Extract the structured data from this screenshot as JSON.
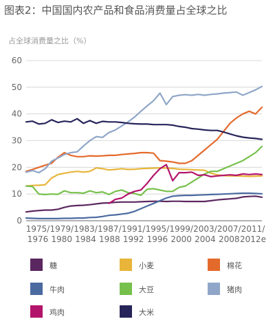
{
  "chart_data": {
    "type": "line",
    "title": "图表2：中国国内农产品和食品消费量占全球之比",
    "ylabel": "占全球消费量之比（%）",
    "xlabel": "",
    "ylim": [
      0,
      60
    ],
    "y_ticks": [
      "0",
      "10",
      "20",
      "30",
      "40",
      "50",
      "60"
    ],
    "x_tick_labels": [
      [
        "1975/",
        "1976"
      ],
      [
        "1979/",
        "1980"
      ],
      [
        "1983/",
        "1984"
      ],
      [
        "1987/",
        "1988"
      ],
      [
        "1991/",
        "1992"
      ],
      [
        "1995/",
        "1996"
      ],
      [
        "1999/",
        "2000"
      ],
      [
        "2003/",
        "2004"
      ],
      [
        "2007/",
        "2008"
      ],
      [
        "2011/",
        "2012e"
      ]
    ],
    "x": [
      1975,
      1976,
      1977,
      1978,
      1979,
      1980,
      1981,
      1982,
      1983,
      1984,
      1985,
      1986,
      1987,
      1988,
      1989,
      1990,
      1991,
      1992,
      1993,
      1994,
      1995,
      1996,
      1997,
      1998,
      1999,
      2000,
      2001,
      2002,
      2003,
      2004,
      2005,
      2006,
      2007,
      2008,
      2009,
      2010,
      2011,
      2012
    ],
    "grid": "horizontal",
    "legend_position": "bottom",
    "series": [
      {
        "name": "糖",
        "color": "#5b2760",
        "values": [
          3.3,
          3.6,
          3.8,
          4,
          4,
          4.3,
          5,
          5.5,
          5.7,
          5.8,
          6,
          6.3,
          6.6,
          6.7,
          6.9,
          7,
          7,
          7,
          7.1,
          7.2,
          7.3,
          7.3,
          7.2,
          7.3,
          7.3,
          7.2,
          7.2,
          7.2,
          7.2,
          7.5,
          7.8,
          8,
          8.2,
          8.4,
          8.9,
          9.1,
          9.2,
          8.8
        ]
      },
      {
        "name": "小麦",
        "color": "#e8b53a",
        "values": [
          13,
          13.2,
          13.3,
          13.5,
          16,
          17.3,
          17.8,
          18.2,
          18.5,
          18.2,
          18.5,
          19.8,
          19.5,
          19,
          19.2,
          19.5,
          19.2,
          19.3,
          19.5,
          19.6,
          19.7,
          19.8,
          19.7,
          19.6,
          19.3,
          19.2,
          19.1,
          19,
          18.9,
          17.8,
          17.2,
          16.9,
          16.8,
          16.8,
          16.7,
          16.6,
          16.7,
          16.8
        ]
      },
      {
        "name": "棉花",
        "color": "#e46a2c",
        "values": [
          18.5,
          19.2,
          20,
          20.8,
          21.5,
          23.8,
          25.5,
          24.5,
          24,
          24,
          24.3,
          24.2,
          24.3,
          24.5,
          24.5,
          24.8,
          25,
          25.2,
          25.5,
          25.5,
          25.3,
          22.5,
          22.3,
          22,
          21.5,
          21.5,
          22.5,
          24.5,
          26.5,
          28.5,
          30.5,
          33.5,
          36.5,
          38.5,
          40,
          41,
          40,
          42.5
        ]
      },
      {
        "name": "牛肉",
        "color": "#4a6aa0",
        "values": [
          1,
          0.9,
          0.8,
          0.8,
          0.8,
          0.8,
          0.9,
          0.9,
          1,
          1,
          1.2,
          1.3,
          1.6,
          2,
          2.2,
          2.5,
          2.8,
          3.5,
          4.5,
          5.5,
          6.5,
          7.5,
          8.5,
          9.2,
          9.4,
          9.5,
          9.5,
          9.6,
          9.7,
          9.8,
          9.9,
          10,
          10.1,
          10.2,
          10.3,
          10.3,
          10.2,
          10.1
        ]
      },
      {
        "name": "大豆",
        "color": "#76c04b",
        "values": [
          13,
          12.8,
          10,
          9.8,
          10,
          9.9,
          11.2,
          10.5,
          10.5,
          10.3,
          11.2,
          10.5,
          10.8,
          9.8,
          11,
          11.5,
          10.5,
          10.2,
          9.5,
          11.8,
          12,
          11.5,
          11,
          11,
          12.5,
          13,
          14.5,
          16,
          17.5,
          18.5,
          18.5,
          19.5,
          20.5,
          21.5,
          22.5,
          24,
          25.5,
          27.8
        ]
      },
      {
        "name": "猪肉",
        "color": "#8fa6c8",
        "values": [
          18.2,
          18.8,
          18,
          19.5,
          22.3,
          23.5,
          24.8,
          25.5,
          25.8,
          28,
          30,
          31.5,
          31.2,
          33,
          34,
          35.5,
          37,
          38.8,
          41,
          43,
          45,
          47.8,
          43.5,
          46.5,
          47,
          47.2,
          47,
          47.3,
          47,
          47.3,
          47.5,
          47.8,
          48,
          48.2,
          47,
          48,
          49,
          50.3
        ]
      },
      {
        "name": "鸡肉",
        "color": "#b3146b",
        "values": [
          null,
          null,
          null,
          null,
          null,
          null,
          null,
          null,
          null,
          null,
          null,
          null,
          null,
          6.5,
          8,
          8.5,
          10,
          11,
          11.5,
          14,
          17,
          19.5,
          21,
          15,
          18,
          18,
          18.2,
          17,
          17.2,
          16.5,
          16.8,
          17,
          17.2,
          17,
          17.5,
          17.3,
          17.5,
          17.3
        ]
      },
      {
        "name": "大米",
        "color": "#27245a",
        "values": [
          37,
          37.3,
          36.2,
          36.5,
          37.8,
          36.8,
          37.3,
          37,
          38.2,
          36.5,
          37.5,
          36.5,
          37.2,
          37,
          37,
          36.8,
          36.5,
          36.3,
          36.2,
          36.2,
          36,
          36,
          36,
          35.8,
          35.3,
          35,
          34.5,
          34.3,
          34,
          33.8,
          33.8,
          33.2,
          32.5,
          31.8,
          31.3,
          31,
          30.8,
          30.5
        ]
      }
    ]
  }
}
